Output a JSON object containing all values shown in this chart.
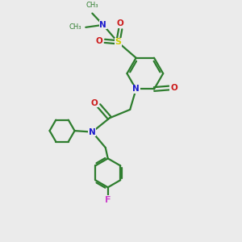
{
  "background_color": "#ebebeb",
  "bond_color": "#2e7d2e",
  "N_color": "#1a1acc",
  "O_color": "#cc1a1a",
  "S_color": "#cccc00",
  "F_color": "#cc44cc",
  "linewidth": 1.6,
  "figsize": [
    3.0,
    3.0
  ],
  "dpi": 100,
  "xlim": [
    0,
    10
  ],
  "ylim": [
    0,
    10
  ]
}
